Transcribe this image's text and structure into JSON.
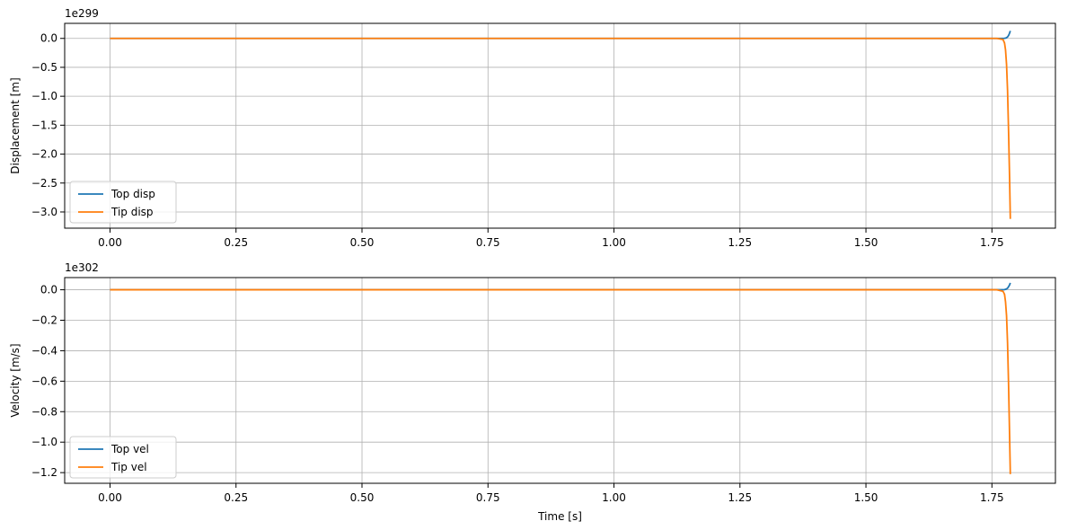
{
  "chart_data": [
    {
      "type": "line",
      "title": "",
      "xlabel": "",
      "ylabel": "Displacement [m]",
      "offset_label": "1e299",
      "xlim": [
        -0.09,
        1.876
      ],
      "ylim": [
        -3.28,
        0.26
      ],
      "x_ticks": [
        0.0,
        0.25,
        0.5,
        0.75,
        1.0,
        1.25,
        1.5,
        1.75
      ],
      "x_tick_labels": [
        "0.00",
        "0.25",
        "0.50",
        "0.75",
        "1.00",
        "1.25",
        "1.50",
        "1.75"
      ],
      "y_ticks": [
        0.0,
        -0.5,
        -1.0,
        -1.5,
        -2.0,
        -2.5,
        -3.0
      ],
      "y_tick_labels": [
        "0.0",
        "−0.5",
        "−1.0",
        "−1.5",
        "−2.0",
        "−2.5",
        "−3.0"
      ],
      "grid": true,
      "legend_position": "lower-left",
      "series": [
        {
          "name": "Top disp",
          "color": "#1f77b4",
          "x": [
            0.0,
            0.5,
            1.0,
            1.5,
            1.76,
            1.775,
            1.778,
            1.781,
            1.783,
            1.785,
            1.7865
          ],
          "y": [
            0,
            0,
            0,
            0,
            0,
            0.002,
            0.008,
            0.025,
            0.05,
            0.09,
            0.13
          ]
        },
        {
          "name": "Tip disp",
          "color": "#ff7f0e",
          "x": [
            0.0,
            0.5,
            1.0,
            1.5,
            1.76,
            1.772,
            1.775,
            1.777,
            1.779,
            1.781,
            1.783,
            1.785,
            1.7865
          ],
          "y": [
            0,
            0,
            0,
            0,
            0,
            -0.02,
            -0.08,
            -0.2,
            -0.45,
            -0.9,
            -1.6,
            -2.4,
            -3.12
          ]
        }
      ]
    },
    {
      "type": "line",
      "title": "",
      "xlabel": "Time [s]",
      "ylabel": "Velocity [m/s]",
      "offset_label": "1e302",
      "xlim": [
        -0.09,
        1.876
      ],
      "ylim": [
        -1.27,
        0.08
      ],
      "x_ticks": [
        0.0,
        0.25,
        0.5,
        0.75,
        1.0,
        1.25,
        1.5,
        1.75
      ],
      "x_tick_labels": [
        "0.00",
        "0.25",
        "0.50",
        "0.75",
        "1.00",
        "1.25",
        "1.50",
        "1.75"
      ],
      "y_ticks": [
        0.0,
        -0.2,
        -0.4,
        -0.6,
        -0.8,
        -1.0,
        -1.2
      ],
      "y_tick_labels": [
        "0.0",
        "−0.2",
        "−0.4",
        "−0.6",
        "−0.8",
        "−1.0",
        "−1.2"
      ],
      "grid": true,
      "legend_position": "lower-left",
      "series": [
        {
          "name": "Top vel",
          "color": "#1f77b4",
          "x": [
            0.0,
            0.5,
            1.0,
            1.5,
            1.76,
            1.775,
            1.778,
            1.781,
            1.783,
            1.785,
            1.7865
          ],
          "y": [
            0,
            0,
            0,
            0,
            0,
            0.001,
            0.004,
            0.01,
            0.02,
            0.032,
            0.045
          ]
        },
        {
          "name": "Tip vel",
          "color": "#ff7f0e",
          "x": [
            0.0,
            0.5,
            1.0,
            1.5,
            1.76,
            1.772,
            1.775,
            1.777,
            1.779,
            1.781,
            1.783,
            1.785,
            1.7865
          ],
          "y": [
            0,
            0,
            0,
            0,
            0,
            -0.01,
            -0.03,
            -0.08,
            -0.17,
            -0.35,
            -0.62,
            -0.95,
            -1.21
          ]
        }
      ]
    }
  ]
}
